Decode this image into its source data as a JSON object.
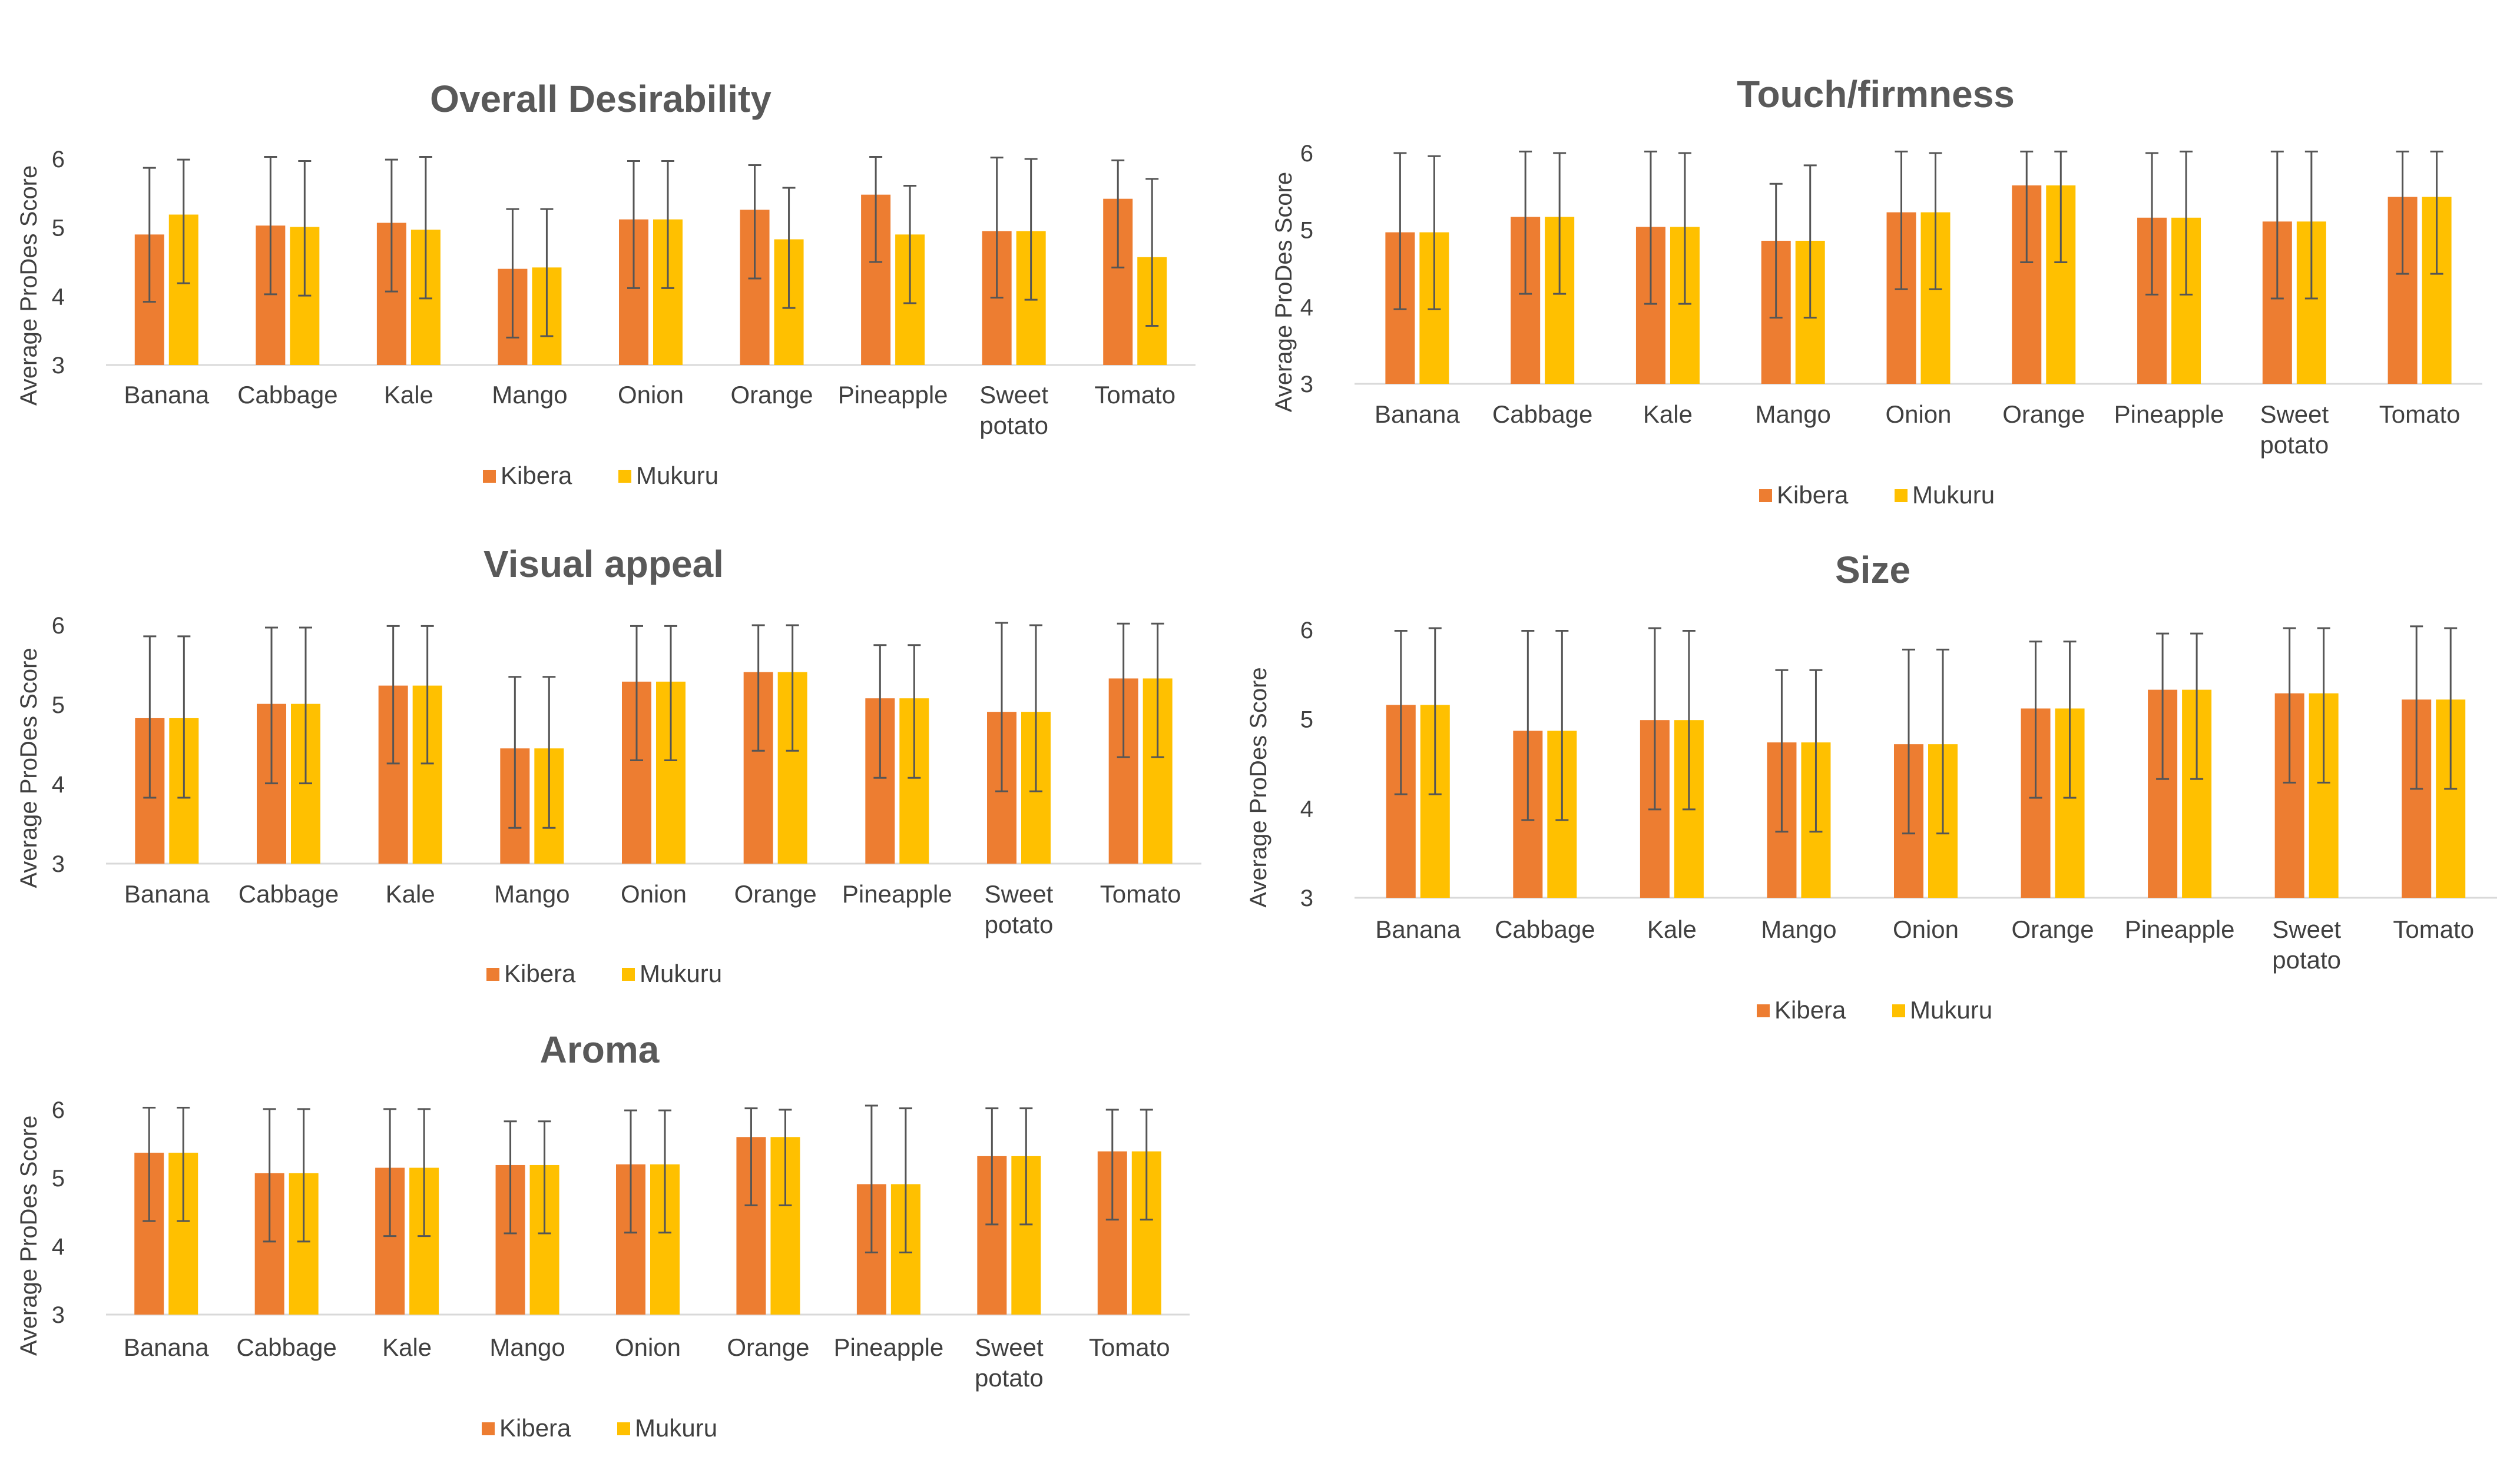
{
  "colors": {
    "kibera": "#ED7D31",
    "mukuru": "#FFC000",
    "axis": "#D9D9D9",
    "error_bar": "#555555",
    "title": "#595959",
    "text": "#404040"
  },
  "chart_data": [
    {
      "type": "bar",
      "title": "Overall Desirability",
      "ylabel": "Average ProDes Score",
      "xlabel": "",
      "ylim": [
        3,
        6
      ],
      "yticks": [
        "3",
        "4",
        "5",
        "6"
      ],
      "categories": [
        [
          "Banana"
        ],
        [
          "Cabbage"
        ],
        [
          "Kale"
        ],
        [
          "Mango"
        ],
        [
          "Onion"
        ],
        [
          "Orange"
        ],
        [
          "Pineapple"
        ],
        [
          "Sweet",
          "potato"
        ],
        [
          "Tomato"
        ]
      ],
      "legend": [
        "Kibera",
        "Mukuru"
      ],
      "legend_position": "bottom",
      "series": [
        {
          "name": "Kibera",
          "values": [
            4.9,
            5.03,
            5.07,
            4.4,
            5.12,
            5.26,
            5.48,
            4.95,
            5.42
          ],
          "err_high": [
            5.87,
            6.03,
            5.99,
            5.27,
            5.97,
            5.91,
            6.03,
            6.02,
            5.98
          ],
          "err_low": [
            3.92,
            4.03,
            4.07,
            3.4,
            4.12,
            4.26,
            4.5,
            3.98,
            4.42
          ]
        },
        {
          "name": "Mukuru",
          "values": [
            5.19,
            5.01,
            4.97,
            4.42,
            5.12,
            4.83,
            4.9,
            4.95,
            4.57
          ],
          "err_high": [
            5.99,
            5.97,
            6.03,
            5.27,
            5.97,
            5.58,
            5.61,
            6.0,
            5.71
          ],
          "err_low": [
            4.19,
            4.01,
            3.97,
            3.42,
            4.12,
            3.83,
            3.9,
            3.95,
            3.57
          ]
        }
      ]
    },
    {
      "type": "bar",
      "title": "Visual appeal",
      "ylabel": "Average ProDes Score",
      "xlabel": "",
      "ylim": [
        3,
        6
      ],
      "yticks": [
        "3",
        "4",
        "5",
        "6"
      ],
      "categories": [
        [
          "Banana"
        ],
        [
          "Cabbage"
        ],
        [
          "Kale"
        ],
        [
          "Mango"
        ],
        [
          "Onion"
        ],
        [
          "Orange"
        ],
        [
          "Pineapple"
        ],
        [
          "Sweet",
          "potato"
        ],
        [
          "Tomato"
        ]
      ],
      "legend": [
        "Kibera",
        "Mukuru"
      ],
      "legend_position": "bottom",
      "series": [
        {
          "name": "Kibera",
          "values": [
            4.83,
            5.01,
            5.24,
            4.45,
            5.29,
            5.41,
            5.08,
            4.91,
            5.33
          ],
          "err_high": [
            5.86,
            5.97,
            5.99,
            5.35,
            5.99,
            6.0,
            5.75,
            6.03,
            6.02
          ],
          "err_low": [
            3.83,
            4.01,
            4.26,
            3.45,
            4.3,
            4.42,
            4.08,
            3.91,
            4.34
          ]
        },
        {
          "name": "Mukuru",
          "values": [
            4.83,
            5.01,
            5.24,
            4.45,
            5.29,
            5.41,
            5.08,
            4.91,
            5.33
          ],
          "err_high": [
            5.86,
            5.97,
            5.99,
            5.35,
            5.99,
            6.0,
            5.75,
            6.0,
            6.02
          ],
          "err_low": [
            3.83,
            4.01,
            4.26,
            3.45,
            4.3,
            4.42,
            4.08,
            3.91,
            4.34
          ]
        }
      ]
    },
    {
      "type": "bar",
      "title": "Aroma",
      "ylabel": "Average ProDes Score",
      "xlabel": "",
      "ylim": [
        3,
        6
      ],
      "yticks": [
        "3",
        "4",
        "5",
        "6"
      ],
      "categories": [
        [
          "Banana"
        ],
        [
          "Cabbage"
        ],
        [
          "Kale"
        ],
        [
          "Mango"
        ],
        [
          "Onion"
        ],
        [
          "Orange"
        ],
        [
          "Pineapple"
        ],
        [
          "Sweet",
          "potato"
        ],
        [
          "Tomato"
        ]
      ],
      "legend": [
        "Kibera",
        "Mukuru"
      ],
      "legend_position": "bottom",
      "series": [
        {
          "name": "Kibera",
          "values": [
            5.37,
            5.07,
            5.15,
            5.19,
            5.2,
            5.6,
            4.91,
            5.32,
            5.39
          ],
          "err_high": [
            6.03,
            6.01,
            6.01,
            5.83,
            5.99,
            6.02,
            6.06,
            6.02,
            6.0
          ],
          "err_low": [
            4.37,
            4.07,
            4.15,
            4.19,
            4.2,
            4.6,
            3.91,
            4.32,
            4.39
          ]
        },
        {
          "name": "Mukuru",
          "values": [
            5.37,
            5.07,
            5.15,
            5.19,
            5.2,
            5.6,
            4.91,
            5.32,
            5.39
          ],
          "err_high": [
            6.03,
            6.01,
            6.01,
            5.83,
            5.99,
            6.0,
            6.02,
            6.02,
            6.0
          ],
          "err_low": [
            4.37,
            4.07,
            4.15,
            4.19,
            4.2,
            4.6,
            3.91,
            4.32,
            4.39
          ]
        }
      ]
    },
    {
      "type": "bar",
      "title": "Touch/firmness",
      "ylabel": "Average ProDes Score",
      "xlabel": "",
      "ylim": [
        3,
        6
      ],
      "yticks": [
        "3",
        "4",
        "5",
        "6"
      ],
      "categories": [
        [
          "Banana"
        ],
        [
          "Cabbage"
        ],
        [
          "Kale"
        ],
        [
          "Mango"
        ],
        [
          "Onion"
        ],
        [
          "Orange"
        ],
        [
          "Pineapple"
        ],
        [
          "Sweet",
          "potato"
        ],
        [
          "Tomato"
        ]
      ],
      "legend": [
        "Kibera",
        "Mukuru"
      ],
      "legend_position": "bottom",
      "series": [
        {
          "name": "Kibera",
          "values": [
            4.97,
            5.17,
            5.04,
            4.86,
            5.23,
            5.58,
            5.16,
            5.11,
            5.43
          ],
          "err_high": [
            6.0,
            6.02,
            6.02,
            5.6,
            6.02,
            6.02,
            6.0,
            6.02,
            6.02
          ],
          "err_low": [
            3.97,
            4.17,
            4.04,
            3.86,
            4.23,
            4.58,
            4.16,
            4.11,
            4.43
          ]
        },
        {
          "name": "Mukuru",
          "values": [
            4.97,
            5.17,
            5.04,
            4.86,
            5.23,
            5.58,
            5.16,
            5.11,
            5.43
          ],
          "err_high": [
            5.96,
            6.0,
            6.0,
            5.84,
            6.0,
            6.02,
            6.02,
            6.02,
            6.02
          ],
          "err_low": [
            3.97,
            4.17,
            4.04,
            3.86,
            4.23,
            4.58,
            4.16,
            4.11,
            4.43
          ]
        }
      ]
    },
    {
      "type": "bar",
      "title": "Size",
      "ylabel": "Average ProDes Score",
      "xlabel": "",
      "ylim": [
        3,
        6
      ],
      "yticks": [
        "3",
        "4",
        "5",
        "6"
      ],
      "categories": [
        [
          "Banana"
        ],
        [
          "Cabbage"
        ],
        [
          "Kale"
        ],
        [
          "Mango"
        ],
        [
          "Onion"
        ],
        [
          "Orange"
        ],
        [
          "Pineapple"
        ],
        [
          "Sweet",
          "potato"
        ],
        [
          "Tomato"
        ]
      ],
      "legend": [
        "Kibera",
        "Mukuru"
      ],
      "legend_position": "bottom",
      "series": [
        {
          "name": "Kibera",
          "values": [
            5.16,
            4.87,
            4.99,
            4.74,
            4.72,
            5.12,
            5.33,
            5.29,
            5.22
          ],
          "err_high": [
            5.99,
            5.99,
            6.02,
            5.55,
            5.78,
            5.87,
            5.96,
            6.02,
            6.04
          ],
          "err_low": [
            4.16,
            3.87,
            3.99,
            3.74,
            3.72,
            4.12,
            4.33,
            4.29,
            4.22
          ]
        },
        {
          "name": "Mukuru",
          "values": [
            5.16,
            4.87,
            4.99,
            4.74,
            4.72,
            5.12,
            5.33,
            5.29,
            5.22
          ],
          "err_high": [
            6.02,
            5.99,
            5.99,
            5.55,
            5.78,
            5.87,
            5.96,
            6.02,
            6.02
          ],
          "err_low": [
            4.16,
            3.87,
            3.99,
            3.74,
            3.72,
            4.12,
            4.33,
            4.29,
            4.22
          ]
        }
      ]
    }
  ]
}
